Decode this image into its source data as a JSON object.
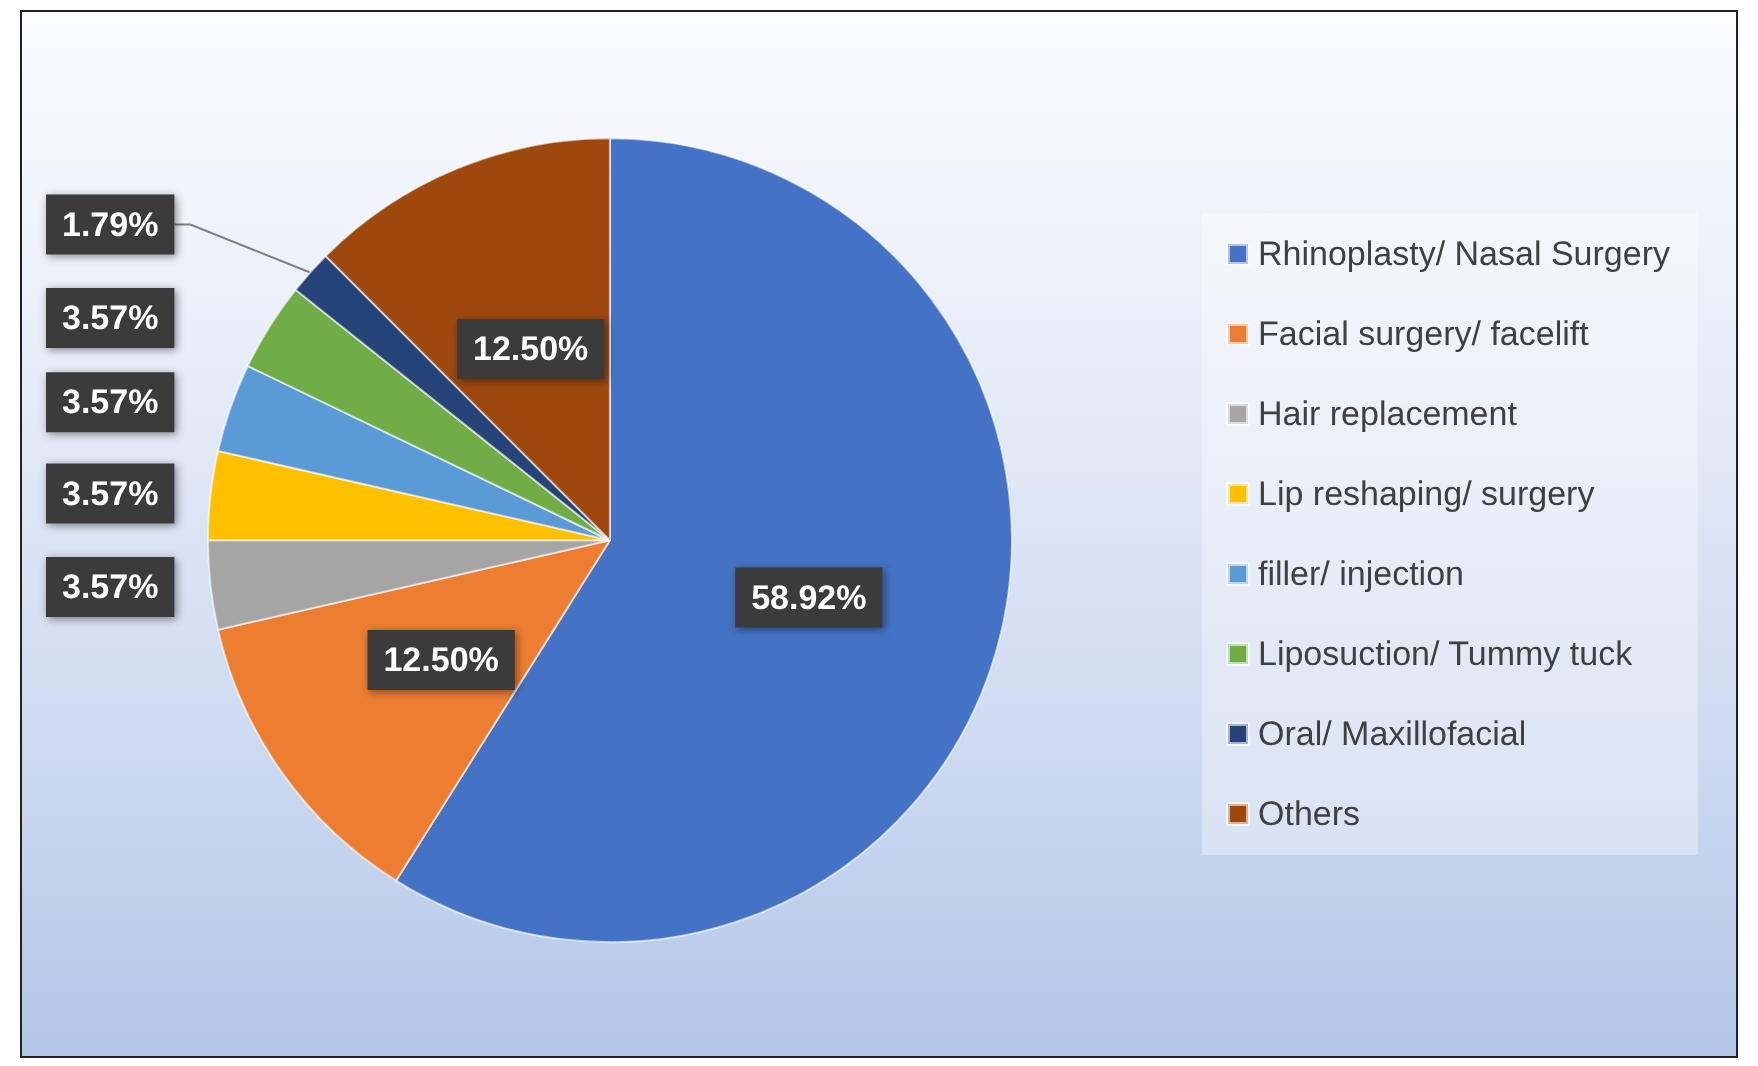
{
  "chart_data": {
    "type": "pie",
    "categories": [
      "Rhinoplasty/ Nasal Surgery",
      "Facial surgery/ facelift",
      "Hair replacement",
      "Lip reshaping/ surgery",
      "filler/ injection",
      "Liposuction/ Tummy tuck",
      "Oral/ Maxillofacial",
      "Others"
    ],
    "values": [
      58.92,
      12.5,
      3.57,
      3.57,
      3.57,
      3.57,
      1.79,
      12.5
    ],
    "colors": [
      "#4472c4",
      "#ed7d31",
      "#a5a5a5",
      "#ffc000",
      "#5b9bd5",
      "#70ad47",
      "#264478",
      "#9e480e"
    ],
    "value_labels": [
      "58.92%",
      "12.50%",
      "3.57%",
      "3.57%",
      "3.57%",
      "3.57%",
      "1.79%",
      "12.50%"
    ],
    "legend": "right"
  }
}
